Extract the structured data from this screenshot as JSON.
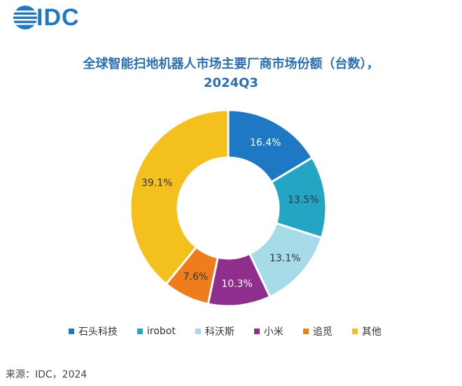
{
  "logo": {
    "text": "IDC",
    "color": "#1f78c4"
  },
  "source": "来源：IDC，2024",
  "chart_data": {
    "type": "donut",
    "title": "全球智能扫地机器人市场主要厂商市场份额（台数），",
    "subtitle": "2024Q3",
    "categories": [
      "石头科技",
      "irobot",
      "科沃斯",
      "小米",
      "追觅",
      "其他"
    ],
    "values": [
      16.4,
      13.5,
      13.1,
      10.3,
      7.6,
      39.1
    ],
    "labels": [
      "16.4%",
      "13.5%",
      "13.1%",
      "10.3%",
      "7.6%",
      "39.1%"
    ],
    "colors": [
      "#1f78c4",
      "#22a6c4",
      "#a6dbe8",
      "#8e2f8e",
      "#f07d1c",
      "#f4c01e"
    ],
    "label_colors": [
      "#ffffff",
      "#333333",
      "#333333",
      "#ffffff",
      "#333333",
      "#333333"
    ],
    "legend_position": "bottom"
  }
}
